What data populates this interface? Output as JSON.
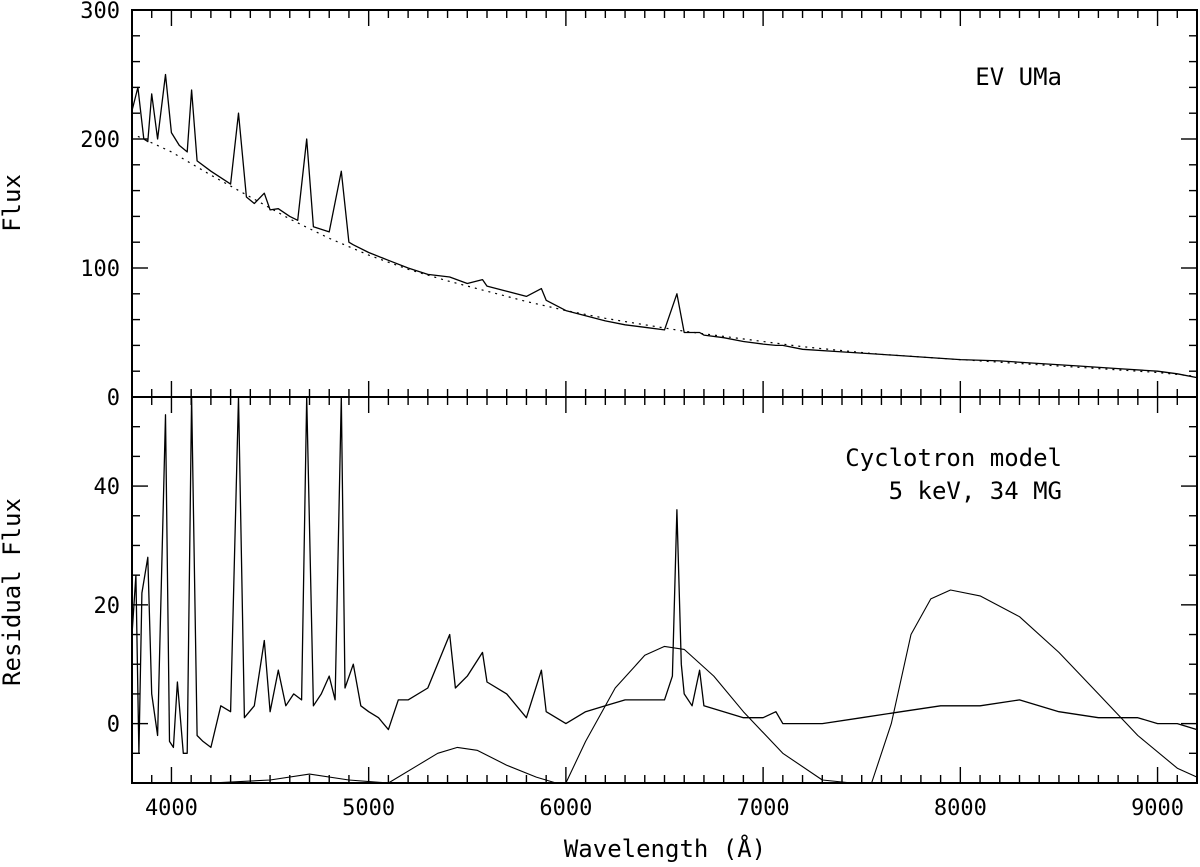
{
  "chart_data": [
    {
      "type": "line",
      "panel": "top",
      "ylabel": "Flux",
      "xlim": [
        3800,
        9200
      ],
      "ylim": [
        0,
        300
      ],
      "yticks": [
        0,
        100,
        200,
        300
      ],
      "annotations": [
        "EV UMa"
      ],
      "series": [
        {
          "style": "solid",
          "x": [
            3800,
            3830,
            3860,
            3880,
            3900,
            3930,
            3970,
            4000,
            4040,
            4080,
            4102,
            4130,
            4200,
            4300,
            4340,
            4380,
            4420,
            4471,
            4500,
            4542,
            4600,
            4640,
            4686,
            4720,
            4800,
            4861,
            4900,
            4922,
            5000,
            5100,
            5200,
            5300,
            5411,
            5500,
            5577,
            5600,
            5700,
            5800,
            5876,
            5900,
            6000,
            6100,
            6200,
            6300,
            6400,
            6500,
            6563,
            6600,
            6678,
            6700,
            6800,
            6900,
            7000,
            7065,
            7100,
            7200,
            7400,
            7600,
            7800,
            8000,
            8200,
            8400,
            8600,
            8800,
            9000,
            9100,
            9200
          ],
          "y": [
            222,
            240,
            200,
            198,
            235,
            200,
            250,
            205,
            195,
            190,
            238,
            183,
            175,
            165,
            220,
            155,
            150,
            158,
            145,
            146,
            140,
            137,
            200,
            132,
            128,
            175,
            120,
            118,
            112,
            106,
            100,
            95,
            93,
            88,
            91,
            86,
            82,
            78,
            84,
            75,
            67,
            63,
            59,
            56,
            54,
            52,
            80,
            50,
            50,
            48,
            46,
            43,
            41,
            40,
            40,
            37,
            35,
            33,
            31,
            29,
            28,
            26,
            24,
            22,
            20,
            18,
            15
          ]
        },
        {
          "style": "dotted",
          "x": [
            3830,
            4000,
            4200,
            4400,
            4600,
            4800,
            5000,
            5200,
            5400,
            5600,
            5800,
            6000,
            6200,
            6400,
            6600,
            6800,
            7000,
            7200,
            7400,
            7600,
            7800,
            8000,
            8200,
            8400,
            8600,
            8800,
            9000,
            9200
          ],
          "y": [
            202,
            190,
            172,
            155,
            138,
            123,
            110,
            99,
            90,
            82,
            74,
            67,
            61,
            56,
            51,
            47,
            43,
            39,
            36,
            33,
            31,
            29,
            27,
            25,
            23,
            21,
            19,
            16
          ]
        }
      ]
    },
    {
      "type": "line",
      "panel": "bottom",
      "xlabel": "Wavelength (Å)",
      "ylabel": "Residual Flux",
      "xlim": [
        3800,
        9200
      ],
      "ylim": [
        -10,
        55
      ],
      "yticks": [
        0,
        20,
        40
      ],
      "xticks": [
        4000,
        5000,
        6000,
        7000,
        8000,
        9000
      ],
      "annotations": [
        "Cyclotron model",
        "5 keV, 34 MG"
      ],
      "series": [
        {
          "style": "solid",
          "x": [
            3800,
            3820,
            3835,
            3850,
            3880,
            3900,
            3930,
            3970,
            3990,
            4010,
            4030,
            4060,
            4080,
            4102,
            4130,
            4160,
            4200,
            4250,
            4300,
            4340,
            4370,
            4420,
            4471,
            4500,
            4542,
            4580,
            4620,
            4660,
            4686,
            4720,
            4760,
            4800,
            4830,
            4861,
            4880,
            4922,
            4960,
            5000,
            5050,
            5100,
            5150,
            5200,
            5300,
            5411,
            5440,
            5500,
            5577,
            5600,
            5700,
            5800,
            5876,
            5900,
            6000,
            6100,
            6200,
            6300,
            6400,
            6500,
            6540,
            6563,
            6585,
            6600,
            6640,
            6678,
            6700,
            6800,
            6900,
            7000,
            7065,
            7100,
            7200,
            7300,
            7500,
            7700,
            7900,
            8100,
            8300,
            8500,
            8700,
            8900,
            9000,
            9100,
            9200
          ],
          "y": [
            15,
            25,
            -5,
            22,
            28,
            5,
            -2,
            52,
            -3,
            -4,
            7,
            -5,
            -5,
            55,
            -2,
            -3,
            -4,
            3,
            2,
            55,
            1,
            3,
            14,
            2,
            9,
            3,
            5,
            4,
            55,
            3,
            5,
            8,
            4,
            55,
            6,
            10,
            3,
            2,
            1,
            -1,
            4,
            4,
            6,
            15,
            6,
            8,
            12,
            7,
            5,
            1,
            9,
            2,
            0,
            2,
            3,
            4,
            4,
            4,
            8,
            36,
            10,
            5,
            3,
            9,
            3,
            2,
            1,
            1,
            2,
            0,
            0,
            0,
            1,
            2,
            3,
            3,
            4,
            2,
            1,
            1,
            0,
            0,
            -1
          ]
        },
        {
          "style": "solid",
          "name": "cyclotron",
          "x": [
            3800,
            4000,
            4200,
            4500,
            4700,
            4900,
            5100,
            5250,
            5350,
            5450,
            5550,
            5700,
            5850,
            5950,
            6000,
            6100,
            6250,
            6400,
            6500,
            6600,
            6750,
            6900,
            7100,
            7300,
            7450,
            7550,
            7650,
            7750,
            7850,
            7950,
            8100,
            8300,
            8500,
            8700,
            8900,
            9100,
            9200
          ],
          "y": [
            -10,
            -10,
            -10,
            -9.5,
            -8.5,
            -9.5,
            -10,
            -7,
            -5,
            -4,
            -4.5,
            -7,
            -9,
            -10,
            -10,
            -3,
            6,
            11.5,
            13,
            12.5,
            8,
            2,
            -5,
            -9.5,
            -10,
            -10,
            0,
            15,
            21,
            22.5,
            21.5,
            18,
            12,
            5,
            -2,
            -7.5,
            -9
          ]
        }
      ]
    }
  ]
}
